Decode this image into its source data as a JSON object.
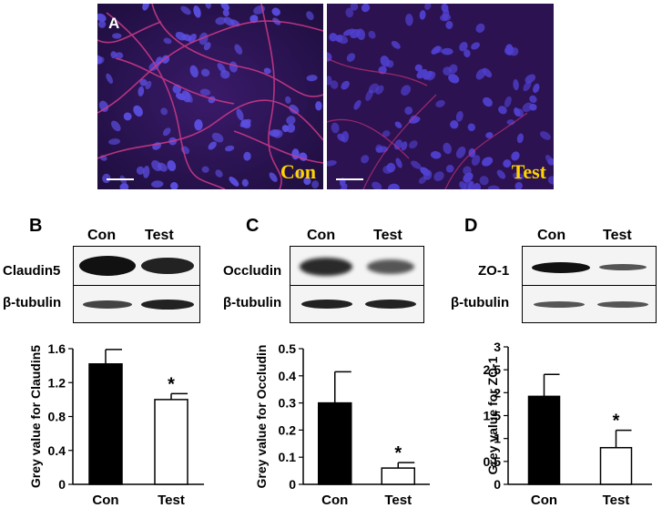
{
  "micrographs": {
    "panel_label": "A",
    "left_label": "Con",
    "right_label": "Test"
  },
  "western_blots": [
    {
      "panel": "B",
      "lanes": [
        "Con",
        "Test"
      ],
      "target": "Claudin5",
      "loading": "β-tubulin"
    },
    {
      "panel": "C",
      "lanes": [
        "Con",
        "Test"
      ],
      "target": "Occludin",
      "loading": "β-tubulin"
    },
    {
      "panel": "D",
      "lanes": [
        "Con",
        "Test"
      ],
      "target": "ZO-1",
      "loading": "β-tubulin"
    }
  ],
  "chart_data": [
    {
      "type": "bar",
      "categories": [
        "Con",
        "Test"
      ],
      "values": [
        1.42,
        1.0
      ],
      "errors": [
        0.17,
        0.07
      ],
      "ylabel": "Grey value for Claudin5",
      "ylim": [
        0,
        1.6
      ],
      "yticks": [
        "0",
        "0.4",
        "0.8",
        "1.2",
        "1.6"
      ],
      "significance": [
        {
          "category": "Test",
          "mark": "*"
        }
      ],
      "fills": [
        "#000000",
        "#ffffff"
      ]
    },
    {
      "type": "bar",
      "categories": [
        "Con",
        "Test"
      ],
      "values": [
        0.3,
        0.06
      ],
      "errors": [
        0.115,
        0.02
      ],
      "ylabel": "Grey value for Occludin",
      "ylim": [
        0,
        0.5
      ],
      "yticks": [
        "0",
        "0.1",
        "0.2",
        "0.3",
        "0.4",
        "0.5"
      ],
      "significance": [
        {
          "category": "Test",
          "mark": "*"
        }
      ],
      "fills": [
        "#000000",
        "#ffffff"
      ]
    },
    {
      "type": "bar",
      "categories": [
        "Con",
        "Test"
      ],
      "values": [
        1.92,
        0.8
      ],
      "errors": [
        0.48,
        0.38
      ],
      "ylabel": "Grey value for ZO-1",
      "ylim": [
        0,
        3
      ],
      "yticks": [
        "0",
        "0.5",
        "1",
        "1.5",
        "2",
        "2.5",
        "3"
      ],
      "significance": [
        {
          "category": "Test",
          "mark": "*"
        }
      ],
      "fills": [
        "#000000",
        "#ffffff"
      ]
    }
  ]
}
